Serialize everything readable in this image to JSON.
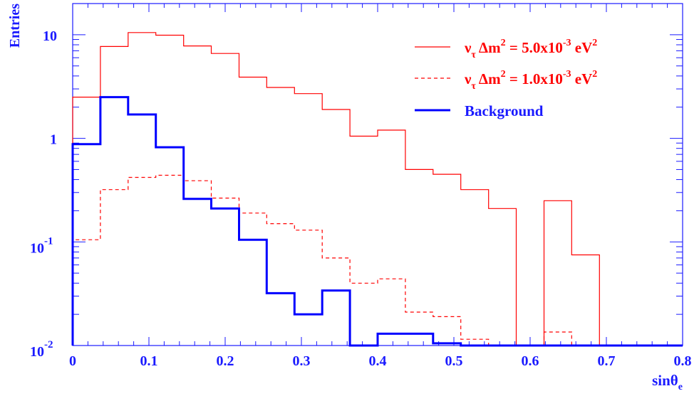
{
  "chart_data": {
    "type": "histogram",
    "xlabel": "sinθ",
    "xlabel_sub": "e",
    "ylabel": "Entries",
    "xlim": [
      0,
      0.8
    ],
    "ylim": [
      0.01,
      20
    ],
    "y_scale": "log",
    "x_ticks": [
      {
        "value": 0,
        "label": "0"
      },
      {
        "value": 0.1,
        "label": "0.1"
      },
      {
        "value": 0.2,
        "label": "0.2"
      },
      {
        "value": 0.3,
        "label": "0.3"
      },
      {
        "value": 0.4,
        "label": "0.4"
      },
      {
        "value": 0.5,
        "label": "0.5"
      },
      {
        "value": 0.6,
        "label": "0.6"
      },
      {
        "value": 0.7,
        "label": "0.7"
      },
      {
        "value": 0.8,
        "label": "0.8"
      }
    ],
    "y_ticks": [
      {
        "value": 10,
        "base": "10",
        "exp": ""
      },
      {
        "value": 1,
        "base": "1",
        "exp": ""
      },
      {
        "value": 0.1,
        "base": "10",
        "exp": "-1"
      },
      {
        "value": 0.01,
        "base": "10",
        "exp": "-2"
      }
    ],
    "bin_edges": [
      0,
      0.0364,
      0.0727,
      0.1091,
      0.1455,
      0.1818,
      0.2182,
      0.2545,
      0.2909,
      0.3273,
      0.3636,
      0.4,
      0.4364,
      0.4727,
      0.5091,
      0.5455,
      0.5818,
      0.6182,
      0.6545,
      0.6909,
      0.7273,
      0.7636,
      0.8
    ],
    "series": [
      {
        "key": "dm2_5e-3",
        "color": "#ff0000",
        "style": "solid",
        "width": 1.2,
        "legend": {
          "nu": "ν",
          "sub": "τ",
          "dm": " Δm",
          "sup1": "2",
          "mid": " = 5.0x10",
          "exp": "-3",
          "unit": " eV",
          "sup2": "2"
        },
        "values": [
          2.5,
          7.7,
          10.5,
          9.9,
          7.8,
          6.6,
          3.9,
          3.1,
          2.7,
          1.9,
          1.05,
          1.2,
          0.5,
          0.45,
          0.32,
          0.21,
          0.0,
          0.25,
          0.075,
          0.0,
          0.0,
          0.0
        ]
      },
      {
        "key": "dm2_1e-3",
        "color": "#ff0000",
        "style": "dashed",
        "width": 1.2,
        "legend": {
          "nu": "ν",
          "sub": "τ",
          "dm": " Δm",
          "sup1": "2",
          "mid": " = 1.0x10",
          "exp": "-3",
          "unit": " eV",
          "sup2": "2"
        },
        "values": [
          0.105,
          0.32,
          0.42,
          0.44,
          0.39,
          0.265,
          0.19,
          0.15,
          0.13,
          0.07,
          0.04,
          0.044,
          0.021,
          0.019,
          0.0115,
          0.0,
          0.0,
          0.0135,
          0.0,
          0.0,
          0.0,
          0.0
        ]
      },
      {
        "key": "background",
        "color": "#0000ff",
        "style": "solid",
        "width": 3,
        "legend": {
          "text": "Background"
        },
        "values": [
          0.88,
          2.5,
          1.7,
          0.82,
          0.26,
          0.21,
          0.105,
          0.032,
          0.02,
          0.034,
          0.0,
          0.013,
          0.013,
          0.0105,
          0.0,
          0.0,
          0.0,
          0.0,
          0.0,
          0.0,
          0.0,
          0.0
        ]
      }
    ],
    "legend_position": "top-right",
    "grid": false
  }
}
